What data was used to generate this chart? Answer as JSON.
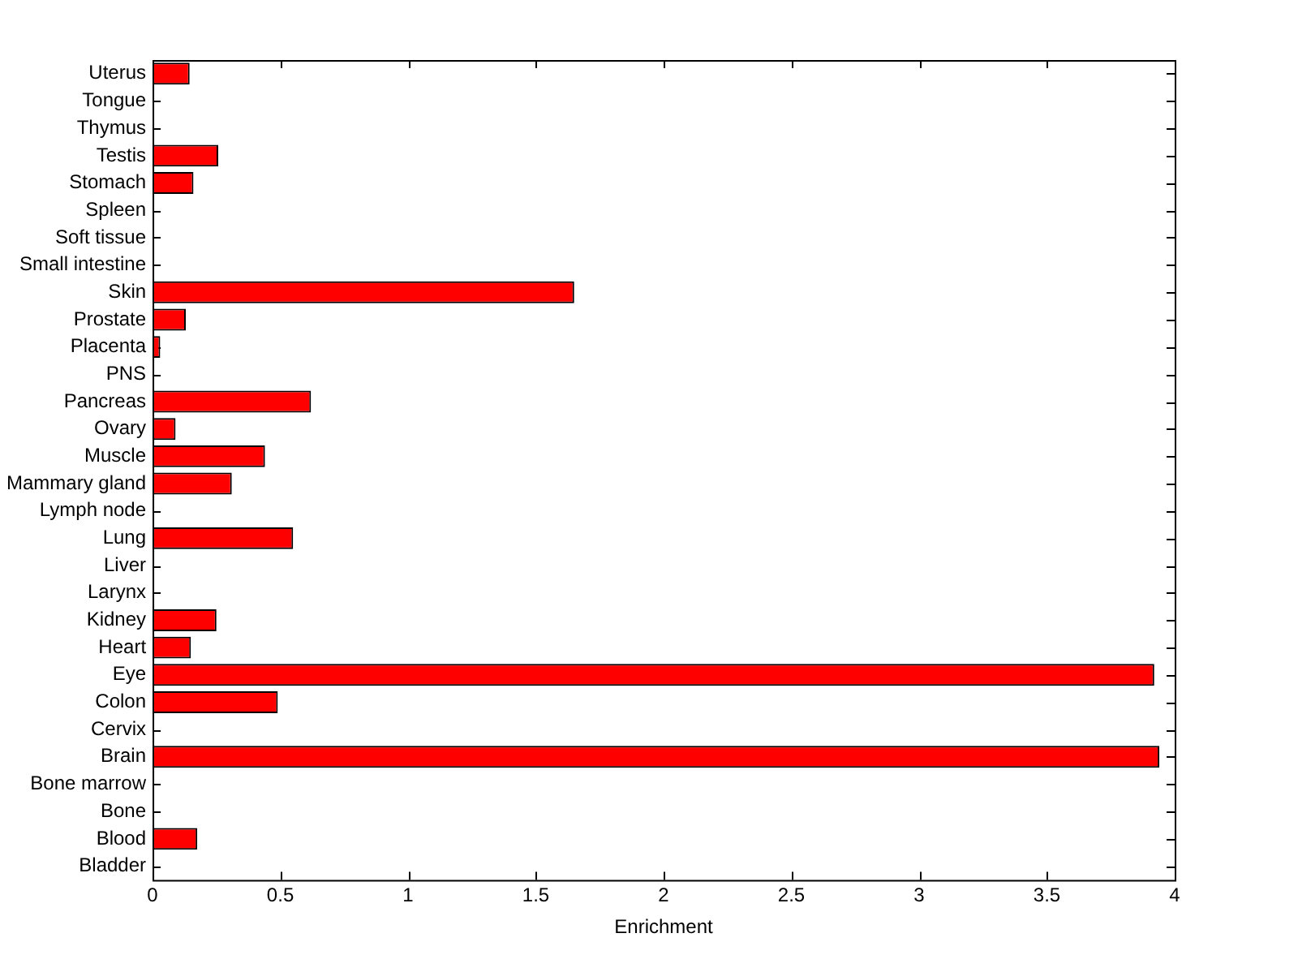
{
  "chart_data": {
    "type": "bar",
    "orientation": "horizontal",
    "xlabel": "Enrichment",
    "categories": [
      "Uterus",
      "Tongue",
      "Thymus",
      "Testis",
      "Stomach",
      "Spleen",
      "Soft tissue",
      "Small intestine",
      "Skin",
      "Prostate",
      "Placenta",
      "PNS",
      "Pancreas",
      "Ovary",
      "Muscle",
      "Mammary gland",
      "Lymph node",
      "Lung",
      "Liver",
      "Larynx",
      "Kidney",
      "Heart",
      "Eye",
      "Colon",
      "Cervix",
      "Brain",
      "Bone marrow",
      "Bone",
      "Blood",
      "Bladder"
    ],
    "values": [
      0.145,
      0,
      0,
      0.257,
      0.16,
      0,
      0,
      0,
      1.65,
      0.13,
      0.03,
      0,
      0.62,
      0.09,
      0.44,
      0.31,
      0,
      0.55,
      0,
      0,
      0.25,
      0.15,
      3.92,
      0.49,
      0,
      3.94,
      0,
      0,
      0.175,
      0
    ],
    "color": "#ff0000",
    "xlim": [
      0,
      4
    ],
    "xticks": [
      0,
      0.5,
      1,
      1.5,
      2,
      2.5,
      3,
      3.5,
      4
    ],
    "grid": false,
    "legend": false
  }
}
